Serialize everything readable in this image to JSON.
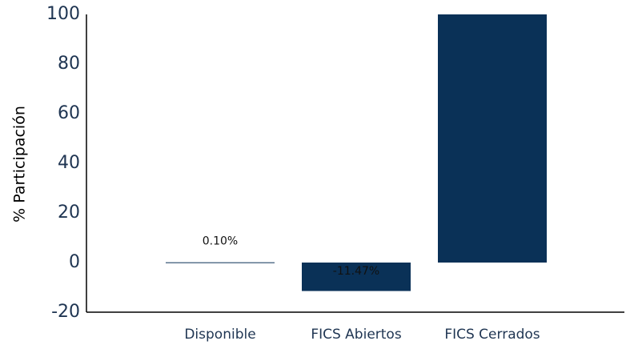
{
  "chart_data": {
    "type": "bar",
    "y_label": "% Participación",
    "categories": [
      "Disponible",
      "FICS Abiertos",
      "FICS Cerrados"
    ],
    "values": [
      0.1,
      -11.47,
      100
    ],
    "value_labels": [
      "0.10%",
      "-11.47%",
      null
    ],
    "color": "#0a3157",
    "ylim": [
      -20,
      100
    ],
    "yticks": [
      -20,
      0,
      20,
      40,
      60,
      80,
      100
    ],
    "grid": false
  }
}
